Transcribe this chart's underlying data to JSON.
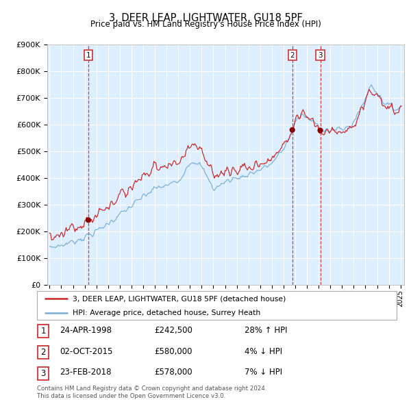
{
  "title": "3, DEER LEAP, LIGHTWATER, GU18 5PF",
  "subtitle": "Price paid vs. HM Land Registry's House Price Index (HPI)",
  "sales": [
    {
      "label": "1",
      "date_num": 1998.31,
      "price": 242500
    },
    {
      "label": "2",
      "date_num": 2015.75,
      "price": 580000
    },
    {
      "label": "3",
      "date_num": 2018.14,
      "price": 578000
    }
  ],
  "legend_line1": "3, DEER LEAP, LIGHTWATER, GU18 5PF (detached house)",
  "legend_line2": "HPI: Average price, detached house, Surrey Heath",
  "table_rows": [
    {
      "num": "1",
      "date": "24-APR-1998",
      "price": "£242,500",
      "pct": "28% ↑ HPI"
    },
    {
      "num": "2",
      "date": "02-OCT-2015",
      "price": "£580,000",
      "pct": "4% ↓ HPI"
    },
    {
      "num": "3",
      "date": "23-FEB-2018",
      "price": "£578,000",
      "pct": "7% ↓ HPI"
    }
  ],
  "footer1": "Contains HM Land Registry data © Crown copyright and database right 2024.",
  "footer2": "This data is licensed under the Open Government Licence v3.0.",
  "xmin": 1994.8,
  "xmax": 2025.3,
  "ymin": 0,
  "ymax": 900000,
  "red_color": "#cc2222",
  "blue_color": "#7aadd4",
  "bg_color": "#ddeeff",
  "grid_color": "#ffffff",
  "sale_dot_color": "#880000",
  "vline_color": "#cc2222"
}
